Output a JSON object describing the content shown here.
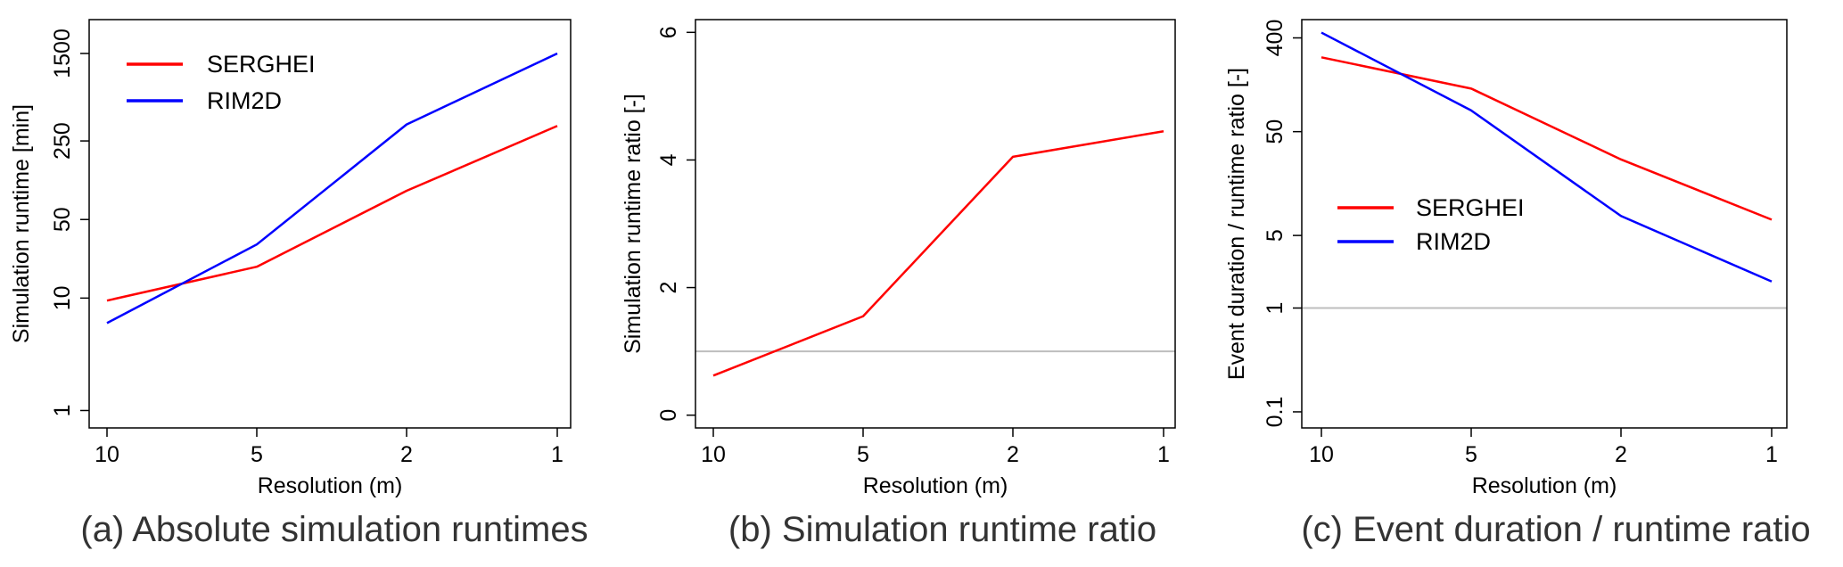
{
  "chart_data": [
    {
      "type": "line",
      "caption": "(a) Absolute simulation runtimes",
      "xlabel": "Resolution (m)",
      "ylabel": "Simulation runtime [min]",
      "x_categories": [
        "10",
        "5",
        "2",
        "1"
      ],
      "y_scale": "log",
      "ylim": [
        0.7,
        3000
      ],
      "yticks": [
        1,
        10,
        50,
        250,
        1500
      ],
      "ytick_labels": [
        "1",
        "10",
        "50",
        "250",
        "1500"
      ],
      "legend_position": "top-left",
      "series": [
        {
          "name": "SERGHEI",
          "color": "#ff0000",
          "values": [
            9.5,
            19,
            90,
            340
          ]
        },
        {
          "name": "RIM2D",
          "color": "#0000ff",
          "values": [
            6,
            30,
            350,
            1500
          ]
        }
      ]
    },
    {
      "type": "line",
      "caption": "(b) Simulation runtime ratio",
      "xlabel": "Resolution (m)",
      "ylabel": "Simulation runtime ratio [-]",
      "x_categories": [
        "10",
        "5",
        "2",
        "1"
      ],
      "y_scale": "linear",
      "ylim": [
        -0.2,
        6.2
      ],
      "yticks": [
        0,
        2,
        4,
        6
      ],
      "ytick_labels": [
        "0",
        "2",
        "4",
        "6"
      ],
      "reference_line": 1,
      "series": [
        {
          "color": "#ff0000",
          "values": [
            0.62,
            1.55,
            4.05,
            4.45
          ]
        }
      ]
    },
    {
      "type": "line",
      "caption": "(c) Event duration / runtime ratio",
      "xlabel": "Resolution (m)",
      "ylabel": "Event duration / runtime ratio [-]",
      "x_categories": [
        "10",
        "5",
        "2",
        "1"
      ],
      "y_scale": "log",
      "ylim": [
        0.07,
        600
      ],
      "yticks": [
        0.1,
        1,
        5,
        50,
        400
      ],
      "ytick_labels": [
        "0.1",
        "1",
        "5",
        "50",
        "400"
      ],
      "reference_line": 1,
      "legend_position": "center-left",
      "series": [
        {
          "name": "SERGHEI",
          "color": "#ff0000",
          "values": [
            260,
            130,
            27,
            7.1
          ]
        },
        {
          "name": "RIM2D",
          "color": "#0000ff",
          "values": [
            450,
            80,
            7.7,
            1.8
          ]
        }
      ]
    }
  ],
  "colors": {
    "reference_line": "#bebebe",
    "axis": "#000000"
  }
}
